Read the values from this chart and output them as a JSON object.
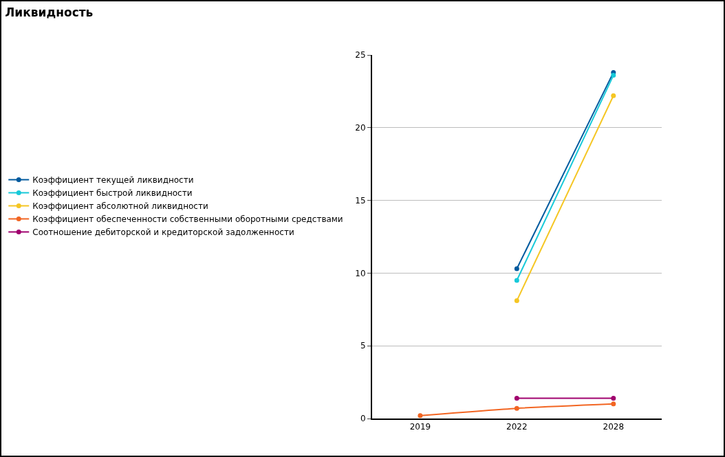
{
  "chart_data": {
    "type": "line",
    "title": "Ликвидность",
    "categories": [
      "2019",
      "2022",
      "2028"
    ],
    "series": [
      {
        "name": "Коэффициент текущей ликвидности",
        "color": "#005a9e",
        "values": [
          null,
          10.3,
          23.8
        ]
      },
      {
        "name": "Коэффициент быстрой ликвидности",
        "color": "#17c9d9",
        "values": [
          null,
          9.5,
          23.6
        ]
      },
      {
        "name": "Коэффициент абсолютной ликвидности",
        "color": "#f5c623",
        "values": [
          null,
          8.1,
          22.2
        ]
      },
      {
        "name": "Коэффициент обеспеченности собственными оборотными средствами",
        "color": "#f26522",
        "values": [
          0.2,
          0.7,
          1.0
        ]
      },
      {
        "name": "Соотношение дебиторской и кредиторской задолженности",
        "color": "#a0006e",
        "values": [
          null,
          1.4,
          1.4
        ]
      }
    ],
    "ylim": [
      0,
      25
    ],
    "yticks": [
      0,
      5,
      10,
      15,
      20,
      25
    ],
    "grid": "y",
    "legend": "left",
    "marker": "circle",
    "line_style": "solid"
  }
}
